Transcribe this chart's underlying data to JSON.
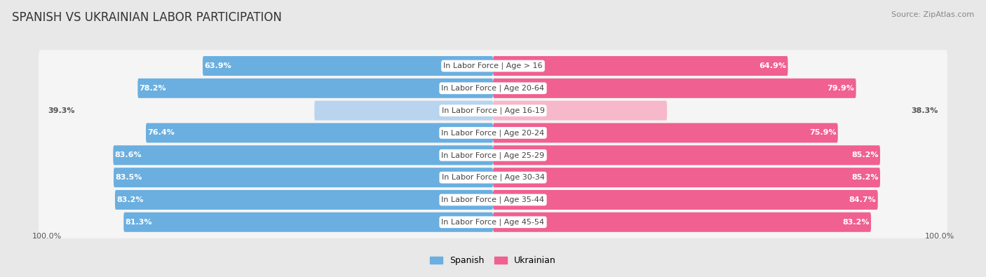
{
  "title": "SPANISH VS UKRAINIAN LABOR PARTICIPATION",
  "source": "Source: ZipAtlas.com",
  "categories": [
    "In Labor Force | Age > 16",
    "In Labor Force | Age 20-64",
    "In Labor Force | Age 16-19",
    "In Labor Force | Age 20-24",
    "In Labor Force | Age 25-29",
    "In Labor Force | Age 30-34",
    "In Labor Force | Age 35-44",
    "In Labor Force | Age 45-54"
  ],
  "spanish_values": [
    63.9,
    78.2,
    39.3,
    76.4,
    83.6,
    83.5,
    83.2,
    81.3
  ],
  "ukrainian_values": [
    64.9,
    79.9,
    38.3,
    75.9,
    85.2,
    85.2,
    84.7,
    83.2
  ],
  "spanish_color": "#6aafe0",
  "spanish_color_light": "#b8d4ee",
  "ukrainian_color": "#f06090",
  "ukrainian_color_light": "#f8b8cc",
  "bg_color": "#e8e8e8",
  "row_bg": "#f5f5f5",
  "max_val": 100.0,
  "title_fontsize": 12,
  "label_fontsize": 8,
  "value_fontsize": 8,
  "legend_fontsize": 9
}
